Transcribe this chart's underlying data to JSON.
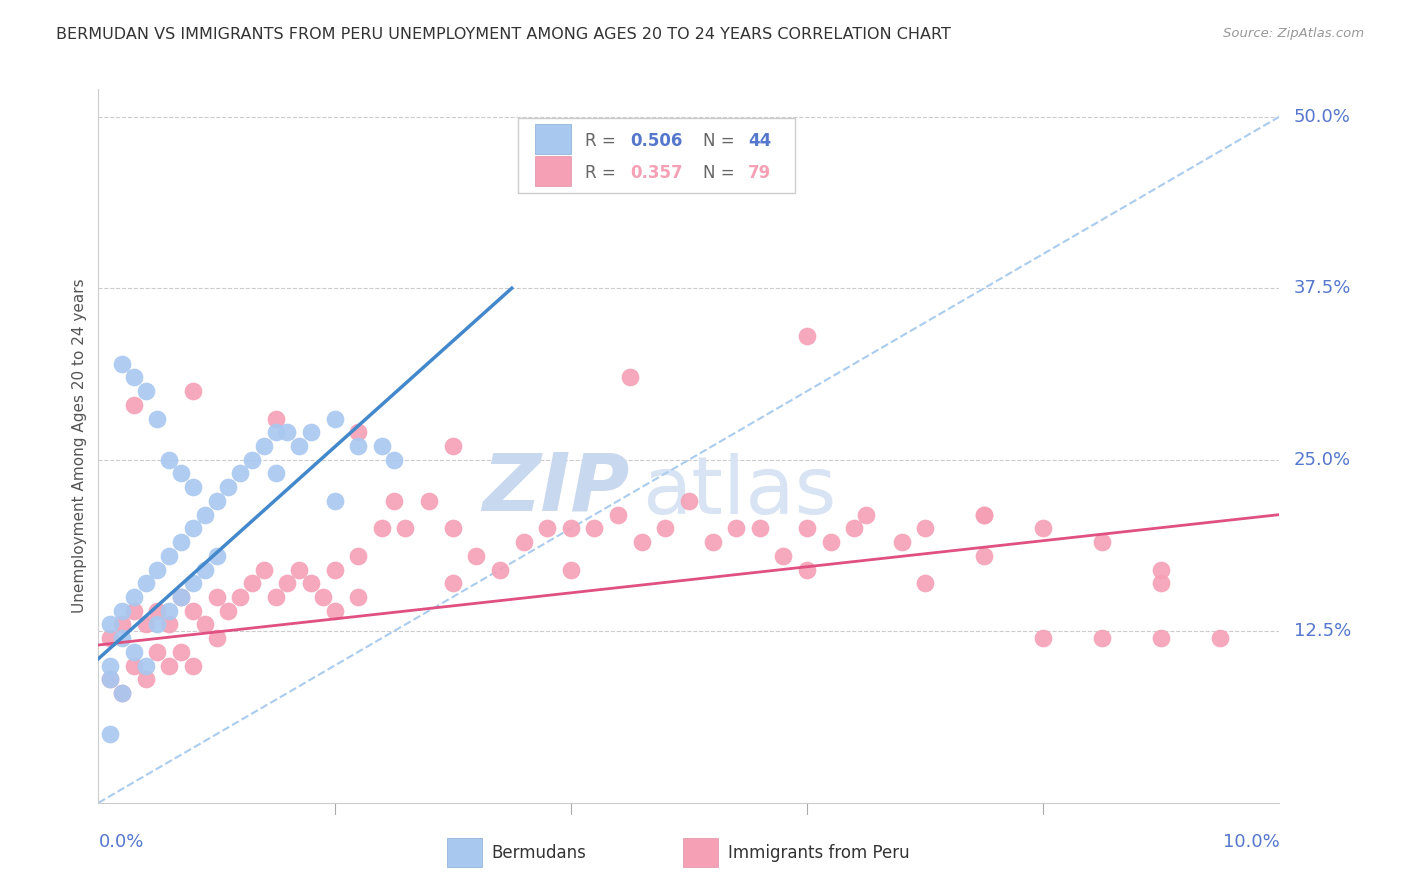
{
  "title": "BERMUDAN VS IMMIGRANTS FROM PERU UNEMPLOYMENT AMONG AGES 20 TO 24 YEARS CORRELATION CHART",
  "source": "Source: ZipAtlas.com",
  "ylabel": "Unemployment Among Ages 20 to 24 years",
  "right_yticks": [
    "50.0%",
    "37.5%",
    "25.0%",
    "12.5%"
  ],
  "right_ytick_vals": [
    0.5,
    0.375,
    0.25,
    0.125
  ],
  "legend_bermudan": "Bermudans",
  "legend_peru": "Immigrants from Peru",
  "r_bermudan": "0.506",
  "n_bermudan": "44",
  "r_peru": "0.357",
  "n_peru": "79",
  "color_bermudan": "#a8c8f0",
  "color_peru": "#f5a0b5",
  "color_line_bermudan": "#4488cc",
  "color_line_peru": "#e05080",
  "color_diagonal": "#aaccee",
  "color_grid": "#cccccc",
  "color_text_blue": "#5577cc",
  "color_title": "#333333",
  "color_source": "#999999",
  "watermark_zip": "ZIP",
  "watermark_atlas": "atlas",
  "xlim": [
    0.0,
    0.1
  ],
  "ylim": [
    0.0,
    0.52
  ],
  "bermudan_line_x0": 0.0,
  "bermudan_line_y0": 0.105,
  "bermudan_line_x1": 0.035,
  "bermudan_line_y1": 0.375,
  "peru_line_x0": 0.0,
  "peru_line_y0": 0.115,
  "peru_line_x1": 0.1,
  "peru_line_y1": 0.21,
  "bermudan_points_x": [
    0.001,
    0.001,
    0.001,
    0.002,
    0.002,
    0.002,
    0.003,
    0.003,
    0.004,
    0.004,
    0.005,
    0.005,
    0.006,
    0.006,
    0.007,
    0.007,
    0.008,
    0.008,
    0.009,
    0.009,
    0.01,
    0.01,
    0.011,
    0.012,
    0.013,
    0.014,
    0.015,
    0.016,
    0.017,
    0.018,
    0.02,
    0.022,
    0.024,
    0.002,
    0.003,
    0.004,
    0.005,
    0.006,
    0.007,
    0.008,
    0.015,
    0.02,
    0.025,
    0.001
  ],
  "bermudan_points_y": [
    0.13,
    0.1,
    0.09,
    0.14,
    0.12,
    0.08,
    0.15,
    0.11,
    0.16,
    0.1,
    0.17,
    0.13,
    0.18,
    0.14,
    0.19,
    0.15,
    0.2,
    0.16,
    0.21,
    0.17,
    0.22,
    0.18,
    0.23,
    0.24,
    0.25,
    0.26,
    0.27,
    0.27,
    0.26,
    0.27,
    0.28,
    0.26,
    0.26,
    0.32,
    0.31,
    0.3,
    0.28,
    0.25,
    0.24,
    0.23,
    0.24,
    0.22,
    0.25,
    0.05
  ],
  "peru_points_x": [
    0.001,
    0.001,
    0.002,
    0.002,
    0.003,
    0.003,
    0.004,
    0.004,
    0.005,
    0.005,
    0.006,
    0.006,
    0.007,
    0.007,
    0.008,
    0.008,
    0.009,
    0.01,
    0.01,
    0.011,
    0.012,
    0.013,
    0.014,
    0.015,
    0.016,
    0.017,
    0.018,
    0.019,
    0.02,
    0.02,
    0.022,
    0.022,
    0.024,
    0.025,
    0.026,
    0.028,
    0.03,
    0.03,
    0.032,
    0.034,
    0.036,
    0.038,
    0.04,
    0.04,
    0.042,
    0.044,
    0.046,
    0.048,
    0.05,
    0.052,
    0.054,
    0.056,
    0.058,
    0.06,
    0.06,
    0.062,
    0.064,
    0.065,
    0.068,
    0.07,
    0.07,
    0.075,
    0.075,
    0.08,
    0.08,
    0.085,
    0.085,
    0.09,
    0.09,
    0.095,
    0.003,
    0.008,
    0.015,
    0.022,
    0.03,
    0.045,
    0.06,
    0.075,
    0.09
  ],
  "peru_points_y": [
    0.12,
    0.09,
    0.13,
    0.08,
    0.14,
    0.1,
    0.13,
    0.09,
    0.14,
    0.11,
    0.13,
    0.1,
    0.15,
    0.11,
    0.14,
    0.1,
    0.13,
    0.15,
    0.12,
    0.14,
    0.15,
    0.16,
    0.17,
    0.15,
    0.16,
    0.17,
    0.16,
    0.15,
    0.17,
    0.14,
    0.18,
    0.15,
    0.2,
    0.22,
    0.2,
    0.22,
    0.2,
    0.16,
    0.18,
    0.17,
    0.19,
    0.2,
    0.2,
    0.17,
    0.2,
    0.21,
    0.19,
    0.2,
    0.22,
    0.19,
    0.2,
    0.2,
    0.18,
    0.2,
    0.17,
    0.19,
    0.2,
    0.21,
    0.19,
    0.2,
    0.16,
    0.21,
    0.18,
    0.2,
    0.12,
    0.19,
    0.12,
    0.12,
    0.16,
    0.12,
    0.29,
    0.3,
    0.28,
    0.27,
    0.26,
    0.31,
    0.34,
    0.21,
    0.17
  ]
}
